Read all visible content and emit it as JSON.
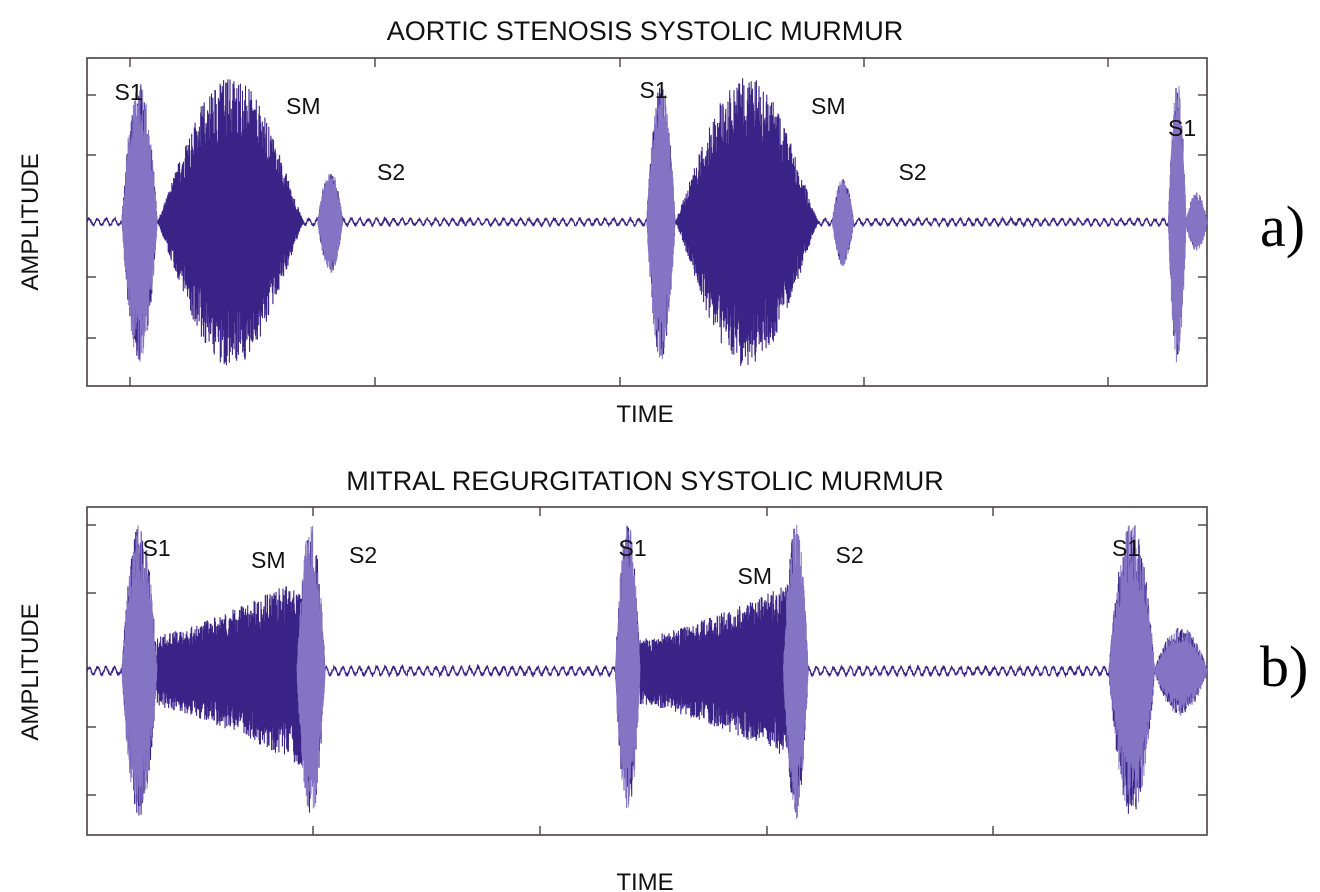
{
  "chart_data": [
    {
      "type": "line",
      "panel_label": "a)",
      "title": "AORTIC STENOSIS SYSTOLIC MURMUR",
      "xlabel": "TIME",
      "ylabel": "AMPLITUDE",
      "line_color": "#3a2387",
      "annotations": [
        {
          "text": "S1",
          "t": 0.13
        },
        {
          "text": "SM",
          "t": 0.62
        },
        {
          "text": "S2",
          "t": 0.88
        },
        {
          "text": "S1",
          "t": 1.63
        },
        {
          "text": "SM",
          "t": 2.12
        },
        {
          "text": "S2",
          "t": 2.37
        },
        {
          "text": "S1",
          "t": 3.14
        }
      ],
      "events": [
        {
          "name": "S1",
          "start": 0.1,
          "end": 0.2,
          "amp": 0.95
        },
        {
          "name": "SM",
          "start": 0.2,
          "end": 0.62,
          "amp": 1.0,
          "shape": "diamond"
        },
        {
          "name": "S2",
          "start": 0.66,
          "end": 0.73,
          "amp": 0.35
        },
        {
          "name": "S1",
          "start": 1.6,
          "end": 1.68,
          "amp": 0.95
        },
        {
          "name": "SM",
          "start": 1.68,
          "end": 2.09,
          "amp": 1.0,
          "shape": "diamond"
        },
        {
          "name": "S2",
          "start": 2.13,
          "end": 2.19,
          "amp": 0.3
        },
        {
          "name": "S1",
          "start": 3.09,
          "end": 3.14,
          "amp": 0.95
        },
        {
          "name": "S1",
          "start": 3.14,
          "end": 3.2,
          "amp": 0.2
        }
      ],
      "baseline_noise": 0.02,
      "xlim": [
        0,
        3.2
      ],
      "ylim": [
        -1.1,
        1.1
      ],
      "grid": false
    },
    {
      "type": "line",
      "panel_label": "b)",
      "title": "MITRAL REGURGITATION SYSTOLIC MURMUR",
      "xlabel": "TIME",
      "ylabel": "AMPLITUDE",
      "line_color": "#3a2387",
      "annotations": [
        {
          "text": "S1",
          "t": 0.21
        },
        {
          "text": "SM",
          "t": 0.52
        },
        {
          "text": "S2",
          "t": 0.8
        },
        {
          "text": "S1",
          "t": 1.57
        },
        {
          "text": "SM",
          "t": 1.91
        },
        {
          "text": "S2",
          "t": 2.19
        },
        {
          "text": "S1",
          "t": 2.98
        }
      ],
      "events": [
        {
          "name": "S1",
          "start": 0.1,
          "end": 0.2,
          "amp": 1.0
        },
        {
          "name": "SM",
          "start": 0.2,
          "end": 0.65,
          "amp": 0.7,
          "shape": "rising"
        },
        {
          "name": "S2",
          "start": 0.6,
          "end": 0.68,
          "amp": 1.0
        },
        {
          "name": "S1",
          "start": 1.51,
          "end": 1.58,
          "amp": 1.0
        },
        {
          "name": "SM",
          "start": 1.58,
          "end": 2.05,
          "amp": 0.65,
          "shape": "rising"
        },
        {
          "name": "S2",
          "start": 1.99,
          "end": 2.06,
          "amp": 1.0
        },
        {
          "name": "S1",
          "start": 2.92,
          "end": 3.05,
          "amp": 1.0
        },
        {
          "name": "S1",
          "start": 3.05,
          "end": 3.2,
          "amp": 0.3
        }
      ],
      "baseline_noise": 0.025,
      "xlim": [
        0,
        3.2
      ],
      "ylim": [
        -1.1,
        1.1
      ],
      "grid": false
    }
  ]
}
